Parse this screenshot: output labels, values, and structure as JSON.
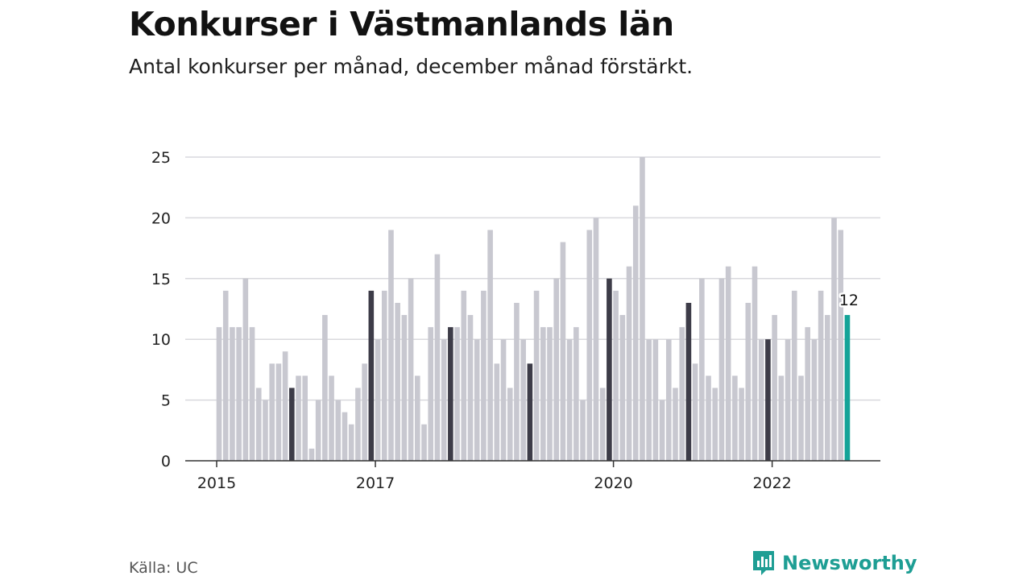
{
  "title": "Konkurser i Västmanlands län",
  "subtitle": "Antal konkurser per månad, december månad förstärkt.",
  "source": "Källa: UC",
  "brand": "Newsworthy",
  "colors": {
    "bar": "#c8c8d0",
    "december": "#3d3c48",
    "latest": "#14a398",
    "grid": "#d9d9dd",
    "axis": "#333333",
    "brand": "#1e9e94"
  },
  "chart_data": {
    "type": "bar",
    "title": "Konkurser i Västmanlands län",
    "xlabel": "",
    "ylabel": "",
    "ylim": [
      0,
      25
    ],
    "yticks": [
      0,
      5,
      10,
      15,
      20,
      25
    ],
    "xticks": [
      {
        "label": "2015",
        "index": 0
      },
      {
        "label": "2017",
        "index": 24
      },
      {
        "label": "2020",
        "index": 60
      },
      {
        "label": "2022",
        "index": 84
      }
    ],
    "start": "2015-01",
    "values": [
      11,
      14,
      11,
      11,
      15,
      11,
      6,
      5,
      8,
      8,
      9,
      6,
      7,
      7,
      1,
      5,
      12,
      7,
      5,
      4,
      3,
      6,
      8,
      14,
      10,
      14,
      19,
      13,
      12,
      15,
      7,
      3,
      11,
      17,
      10,
      11,
      11,
      14,
      12,
      10,
      14,
      19,
      8,
      10,
      6,
      13,
      10,
      8,
      14,
      11,
      11,
      15,
      18,
      10,
      11,
      5,
      19,
      20,
      6,
      15,
      14,
      12,
      16,
      21,
      25,
      10,
      10,
      5,
      10,
      6,
      11,
      13,
      8,
      15,
      7,
      6,
      15,
      16,
      7,
      6,
      13,
      16,
      10,
      10,
      12,
      7,
      10,
      14,
      7,
      11,
      10,
      14,
      12,
      20,
      19,
      12
    ],
    "highlight_last_label": "12",
    "legend": "none"
  }
}
